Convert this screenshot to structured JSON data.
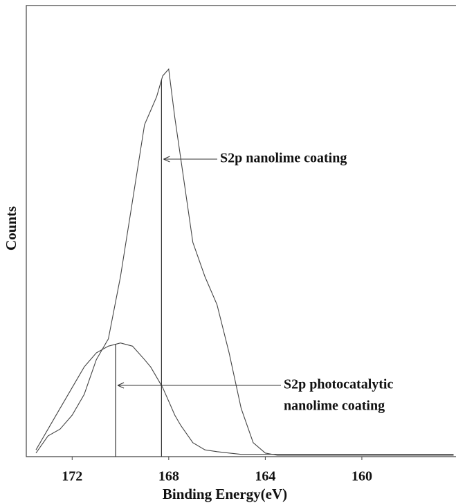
{
  "chart_data": {
    "type": "line",
    "x_label": "Binding Energy(eV)",
    "y_label": "Counts",
    "x": [
      173.5,
      173,
      172.5,
      172,
      171.5,
      171,
      170.5,
      170,
      169.5,
      169,
      168.75,
      168.5,
      168.25,
      168,
      167.75,
      167.5,
      167,
      166.5,
      166,
      165.5,
      165,
      164.5,
      164,
      163.5,
      163,
      162,
      161,
      160,
      159,
      158,
      157,
      156.2
    ],
    "series": [
      {
        "name": "S2p nanolime coating",
        "color": "#444444",
        "values": [
          0.8,
          4.6,
          6.1,
          9.2,
          13.8,
          21.5,
          26.1,
          39.9,
          56.7,
          73.6,
          76.7,
          79.8,
          84.4,
          85.9,
          75.2,
          66.0,
          47.5,
          39.9,
          33.7,
          23.0,
          10.7,
          3.1,
          0.8,
          0.3,
          0.3,
          0.3,
          0.3,
          0.3,
          0.3,
          0.3,
          0.3,
          0.3
        ]
      },
      {
        "name": "S2p photocatalytic nanolime coating",
        "color": "#444444",
        "values": [
          1.5,
          6.1,
          10.7,
          15.3,
          19.9,
          23.0,
          24.5,
          25.2,
          24.5,
          21.5,
          19.9,
          17.6,
          15.3,
          12.3,
          9.2,
          6.9,
          3.1,
          1.5,
          1.1,
          0.8,
          0.5,
          0.5,
          0.5,
          0.5,
          0.5,
          0.5,
          0.5,
          0.5,
          0.5,
          0.5,
          0.5,
          0.5
        ]
      }
    ],
    "annotations": [
      {
        "lines": [
          "S2p nanolime coating"
        ],
        "x": 168.3
      },
      {
        "lines": [
          "S2p photocatalytic",
          "nanolime coating"
        ],
        "x": 170.2
      }
    ],
    "xlim": [
      173.9,
      156.1
    ],
    "ylim": [
      0,
      100
    ],
    "xticks": [
      172,
      168,
      164,
      160
    ],
    "grid": false
  }
}
